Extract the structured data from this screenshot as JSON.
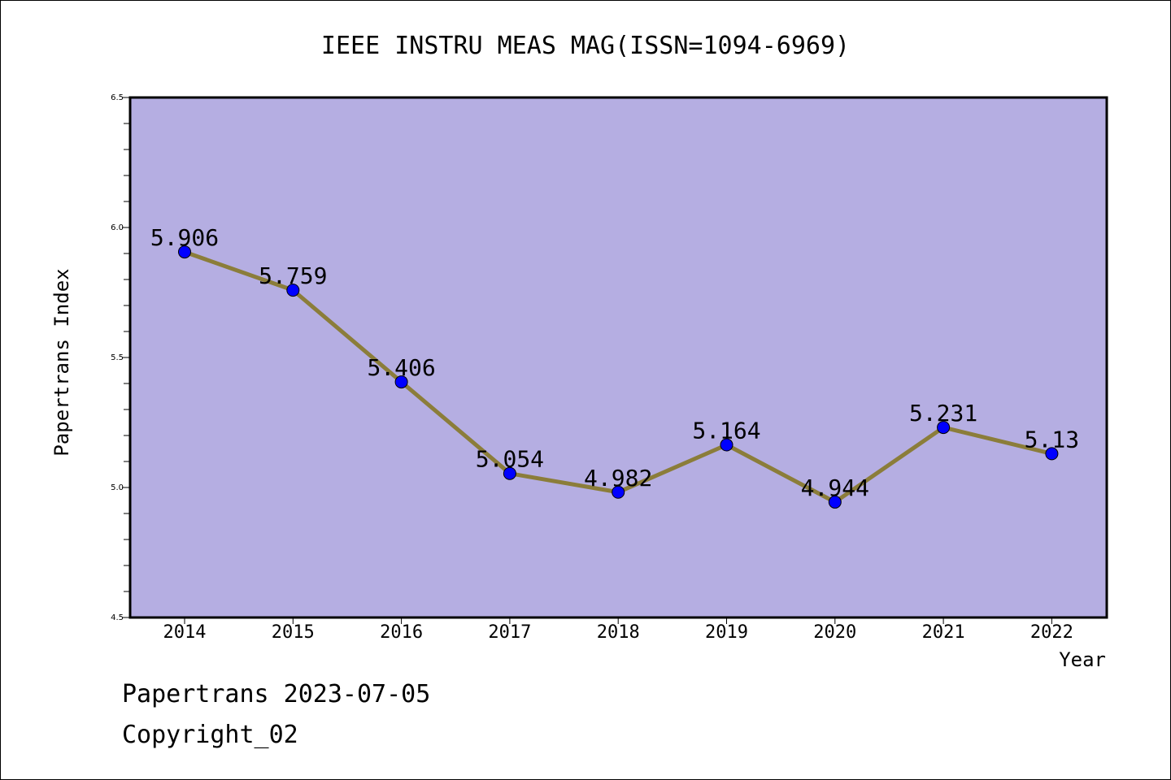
{
  "chart_data": {
    "type": "line",
    "title": "IEEE INSTRU MEAS MAG(ISSN=1094-6969)",
    "xlabel": "Year",
    "ylabel": "Papertrans Index",
    "categories": [
      "2014",
      "2015",
      "2016",
      "2017",
      "2018",
      "2019",
      "2020",
      "2021",
      "2022"
    ],
    "series": [
      {
        "values": [
          5.906,
          5.759,
          5.406,
          5.054,
          4.982,
          5.164,
          4.944,
          5.231,
          5.13
        ],
        "labels": [
          "5.906",
          "5.759",
          "5.406",
          "5.054",
          "4.982",
          "5.164",
          "4.944",
          "5.231",
          "5.13"
        ]
      }
    ],
    "ylim": [
      4.5,
      6.5
    ],
    "yticks": [
      "4.5",
      "5.0",
      "5.5",
      "6.0",
      "6.5"
    ],
    "grid": false,
    "colors": {
      "plot_bg": "#b5aee2",
      "line": "#8b7d3a",
      "marker": "#0000ff"
    }
  },
  "footer": {
    "line1": "Papertrans 2023-07-05",
    "line2": "Copyright_02"
  }
}
